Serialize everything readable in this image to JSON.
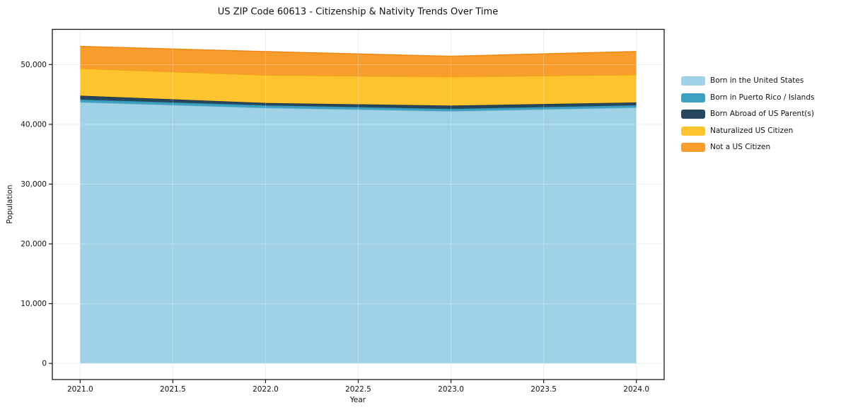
{
  "chart": {
    "title": "US ZIP Code 60613 - Citizenship & Nativity Trends Over Time",
    "xlabel": "Year",
    "ylabel": "Population"
  },
  "chart_data": {
    "type": "area",
    "stacked": true,
    "title": "US ZIP Code 60613 - Citizenship & Nativity Trends Over Time",
    "xlabel": "Year",
    "ylabel": "Population",
    "x": [
      2021,
      2022,
      2023,
      2024
    ],
    "series": [
      {
        "name": "Born in the United States",
        "values": [
          43700,
          42750,
          42200,
          42800
        ],
        "color": "#A0D2E7",
        "edge": "#7FB9D5"
      },
      {
        "name": "Born in Puerto Rico / Islands",
        "values": [
          450,
          430,
          390,
          400
        ],
        "color": "#3DA0C1",
        "edge": "#2E8BAB"
      },
      {
        "name": "Born Abroad of US Parent(s)",
        "values": [
          650,
          400,
          550,
          470
        ],
        "color": "#25465C",
        "edge": "#1B3547"
      },
      {
        "name": "Naturalized US Citizen",
        "values": [
          4550,
          4650,
          4800,
          4630
        ],
        "color": "#FDC42F",
        "edge": "#E7A90F"
      },
      {
        "name": "Not a US Citizen",
        "values": [
          3700,
          3950,
          3450,
          3900
        ],
        "color": "#F89C2E",
        "edge": "#EE860F"
      }
    ],
    "xlim": [
      2020.85,
      2024.15
    ],
    "ylim": [
      -2700,
      55900
    ],
    "xticks": [
      2021.0,
      2021.5,
      2022.0,
      2022.5,
      2023.0,
      2023.5,
      2024.0
    ],
    "xtick_labels": [
      "2021.0",
      "2021.5",
      "2022.0",
      "2022.5",
      "2023.0",
      "2023.5",
      "2024.0"
    ],
    "yticks": [
      0,
      10000,
      20000,
      30000,
      40000,
      50000
    ],
    "ytick_labels": [
      "0",
      "10,000",
      "20,000",
      "30,000",
      "40,000",
      "50,000"
    ],
    "grid": true,
    "legend_position": "right",
    "grid_color": "#e7e7e7",
    "spine_color": "#1a1a1a",
    "tick_label_color": "#111111"
  }
}
